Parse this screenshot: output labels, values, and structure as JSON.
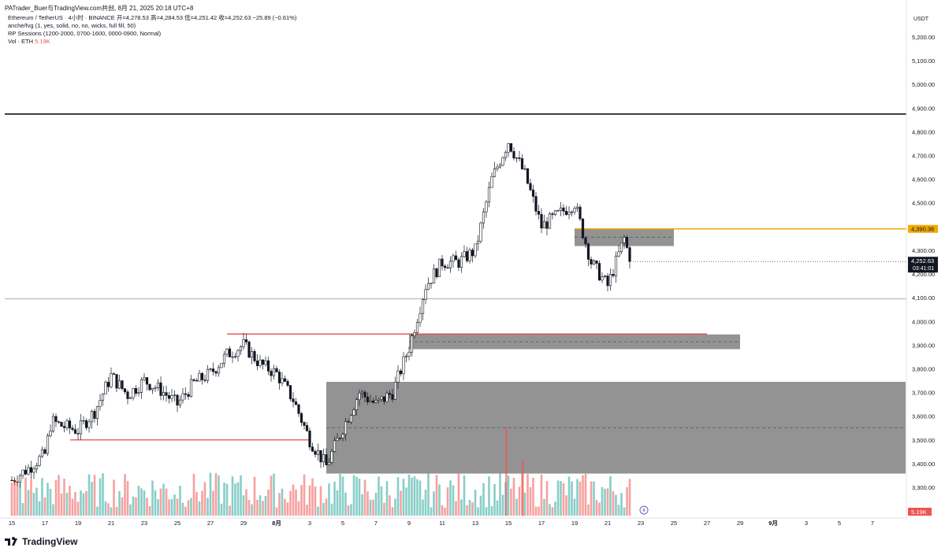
{
  "header": {
    "text": "PATrader_Buer与TradingView.com共创, 8月 21, 2025 20:18 UTC+8"
  },
  "legend": {
    "line1": "Ethereum / TetherUS · 4小时 · BINANCE  开=4,278.53  高=4,284.53  低=4,251.42  收=4,252.63  −25.89 (−0.61%)",
    "line2": "anche/fvg (1, yes, solid, no, no, wicks, full fill, 50)",
    "line3": "RP Sessions (1200-2000, 0700-1600, 0000-0900, Normal)",
    "line4_prefix": "Vol · ETH",
    "line4_value": "5.19K"
  },
  "footer": {
    "brand": "TradingView"
  },
  "colors": {
    "up": "#ffffff",
    "down": "#131722",
    "vol_up": "#26a69a",
    "vol_down": "#ef5350",
    "zone": "#808080",
    "red_line": "#e53935",
    "orange_line": "#f2a900",
    "black_line": "#000000"
  },
  "chart_data": {
    "type": "candlestick",
    "symbol": "Ethereum / TetherUS",
    "interval": "4小时",
    "exchange": "BINANCE",
    "currency": "USDT",
    "ylim": [
      3220,
      5300
    ],
    "y_ticks": [
      3300,
      3400,
      3500,
      3600,
      3700,
      3800,
      3900,
      4000,
      4100,
      4200,
      4300,
      4400,
      4500,
      4600,
      4700,
      4800,
      4900,
      5000,
      5100,
      5200
    ],
    "x_ticks": [
      "15",
      "17",
      "19",
      "21",
      "23",
      "25",
      "27",
      "29",
      "8月",
      "3",
      "5",
      "7",
      "9",
      "11",
      "13",
      "15",
      "17",
      "19",
      "21",
      "23",
      "25",
      "27",
      "29",
      "9月",
      "3",
      "5",
      "7"
    ],
    "current_price": {
      "value": 4252.63,
      "label": "4,252.63",
      "countdown": "03:41:01"
    },
    "price_labels": {
      "orange": "4,390.38",
      "volume": "5.19K"
    },
    "key_levels": {
      "black": 4875,
      "thin_gray": 4095,
      "red_upper": 3947,
      "red_lower": 3500,
      "orange": 4390.38
    },
    "zones": [
      {
        "name": "zone-top",
        "from_date": "2025-08-18",
        "to_date": "2025-08-24",
        "low": 4318,
        "high": 4393
      },
      {
        "name": "zone-mid",
        "from_date": "2025-08-08",
        "to_date": "2025-08-28",
        "low": 3883,
        "high": 3945
      },
      {
        "name": "zone-low",
        "from_date": "2025-08-03",
        "to_date": "2025-09-07",
        "low": 3358,
        "high": 3745
      }
    ],
    "price_path": [
      [
        "07-15",
        3330
      ],
      [
        "07-16",
        3380
      ],
      [
        "07-17",
        3440
      ],
      [
        "07-17",
        3580
      ],
      [
        "07-18",
        3560
      ],
      [
        "07-19",
        3540
      ],
      [
        "07-20",
        3620
      ],
      [
        "07-21",
        3770
      ],
      [
        "07-22",
        3690
      ],
      [
        "07-23",
        3750
      ],
      [
        "07-24",
        3710
      ],
      [
        "07-25",
        3650
      ],
      [
        "07-26",
        3740
      ],
      [
        "07-27",
        3780
      ],
      [
        "07-28",
        3860
      ],
      [
        "07-29",
        3900
      ],
      [
        "07-30",
        3820
      ],
      [
        "07-31",
        3780
      ],
      [
        "08-01",
        3670
      ],
      [
        "08-02",
        3500
      ],
      [
        "08-03",
        3390
      ],
      [
        "08-04",
        3550
      ],
      [
        "08-05",
        3700
      ],
      [
        "08-06",
        3650
      ],
      [
        "08-07",
        3700
      ],
      [
        "08-08",
        3890
      ],
      [
        "08-09",
        4150
      ],
      [
        "08-10",
        4250
      ],
      [
        "08-11",
        4250
      ],
      [
        "08-12",
        4300
      ],
      [
        "08-13",
        4600
      ],
      [
        "08-14",
        4760
      ],
      [
        "08-15",
        4620
      ],
      [
        "08-16",
        4400
      ],
      [
        "08-17",
        4450
      ],
      [
        "08-18",
        4500
      ],
      [
        "08-19",
        4250
      ],
      [
        "08-20",
        4150
      ],
      [
        "08-21",
        4350
      ],
      [
        "08-21",
        4252
      ]
    ],
    "volume_spikes": [
      [
        "08-14",
        5.1
      ],
      [
        "08-15",
        3.2
      ]
    ]
  }
}
